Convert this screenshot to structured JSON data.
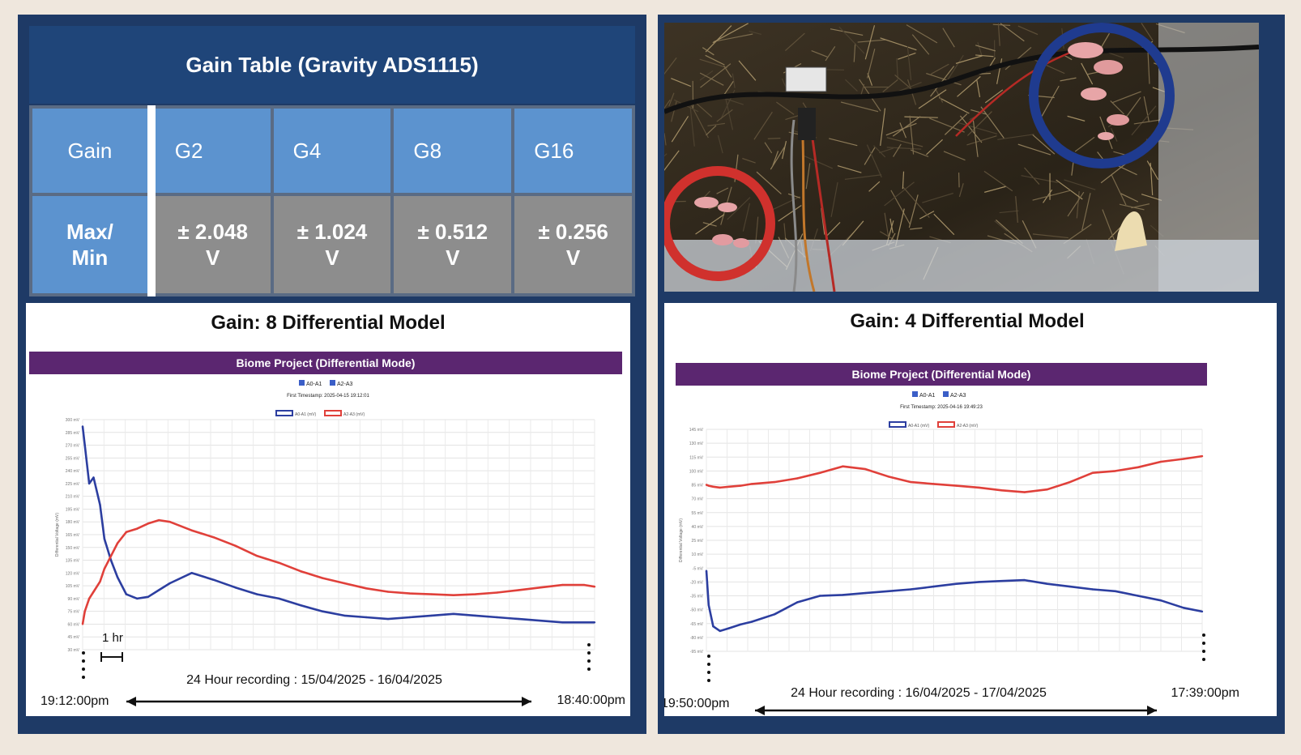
{
  "gain_table": {
    "title": "Gain Table (Gravity ADS1115)",
    "row_gain_label": "Gain",
    "row_max_label_line1": "Max/",
    "row_max_label_line2": "Min",
    "columns": [
      {
        "gain": "G2",
        "max_line1": "± 2.048",
        "max_line2": "V"
      },
      {
        "gain": "G4",
        "max_line1": "± 1.024",
        "max_line2": "V"
      },
      {
        "gain": "G8",
        "max_line1": "± 0.512",
        "max_line2": "V"
      },
      {
        "gain": "G16",
        "max_line1": "± 0.256",
        "max_line2": "V"
      }
    ]
  },
  "photo": {
    "marker_colors": {
      "red_circle": "#d0312d",
      "blue_circle": "#1f3b8f"
    }
  },
  "colors": {
    "series_a": "#2c3ea0",
    "series_b": "#e0403a",
    "banner": "#5b2670",
    "panel": "#1e3a66"
  },
  "chart_data": [
    {
      "type": "line",
      "panel_title": "Gain: 8 Differential Model",
      "banner": "Biome Project (Differential Mode)",
      "checkbox_label_1": "A0-A1",
      "checkbox_label_2": "A2-A3",
      "first_timestamp": "First Timestamp: 2025-04-15 19:12:01",
      "ylabel": "Differential Voltage (mV)",
      "ylim": [
        30,
        300
      ],
      "yticks": [
        "300 mV",
        "285 mV",
        "270 mV",
        "255 mV",
        "240 mV",
        "225 mV",
        "210 mV",
        "195 mV",
        "180 mV",
        "165 mV",
        "150 mV",
        "135 mV",
        "120 mV",
        "105 mV",
        "90 mV",
        "75 mV",
        "60 mV",
        "45 mV",
        "30 mV"
      ],
      "x_hours": [
        0,
        0.1,
        0.3,
        0.5,
        0.8,
        1,
        1.3,
        1.6,
        2,
        2.5,
        3,
        3.5,
        4,
        5,
        6,
        7,
        8,
        9,
        10,
        11,
        12,
        13,
        14,
        15,
        16,
        17,
        18,
        19,
        20,
        21,
        22,
        23,
        23.47
      ],
      "series": [
        {
          "name": "A0-A1 (mV)",
          "values": [
            292,
            270,
            225,
            232,
            200,
            160,
            135,
            115,
            95,
            90,
            92,
            100,
            108,
            120,
            112,
            103,
            95,
            90,
            82,
            75,
            70,
            68,
            66,
            68,
            70,
            72,
            70,
            68,
            66,
            64,
            62,
            62,
            62
          ]
        },
        {
          "name": "A2-A3 (mV)",
          "values": [
            60,
            75,
            90,
            98,
            110,
            125,
            140,
            155,
            168,
            172,
            178,
            182,
            180,
            170,
            162,
            152,
            140,
            132,
            122,
            114,
            108,
            102,
            98,
            96,
            95,
            94,
            95,
            97,
            100,
            103,
            106,
            106,
            104
          ]
        }
      ],
      "annotation_interval": "1 hr",
      "recording_label": "24 Hour recording : 15/04/2025 - 16/04/2025",
      "start_time": "19:12:00pm",
      "end_time": "18:40:00pm"
    },
    {
      "type": "line",
      "panel_title": "Gain: 4 Differential Model",
      "banner": "Biome Project (Differential Mode)",
      "checkbox_label_1": "A0-A1",
      "checkbox_label_2": "A2-A3",
      "first_timestamp": "First Timestamp: 2025-04-16 19:49:23",
      "ylabel": "Differential Voltage (mV)",
      "ylim": [
        -95,
        145
      ],
      "yticks": [
        "145 mV",
        "130 mV",
        "115 mV",
        "100 mV",
        "85 mV",
        "70 mV",
        "55 mV",
        "40 mV",
        "25 mV",
        "10 mV",
        "-5 mV",
        "-20 mV",
        "-35 mV",
        "-50 mV",
        "-65 mV",
        "-80 mV",
        "-95 mV"
      ],
      "x_hours": [
        0,
        0.1,
        0.3,
        0.6,
        1,
        1.5,
        2,
        3,
        4,
        5,
        6,
        7,
        8,
        9,
        10,
        11,
        12,
        13,
        14,
        15,
        16,
        17,
        18,
        19,
        20,
        21,
        21.82
      ],
      "series": [
        {
          "name": "A0-A1 (mV)",
          "values": [
            -8,
            -45,
            -68,
            -73,
            -70,
            -66,
            -63,
            -55,
            -42,
            -35,
            -34,
            -32,
            -30,
            -28,
            -25,
            -22,
            -20,
            -19,
            -18,
            -22,
            -25,
            -28,
            -30,
            -35,
            -40,
            -48,
            -52
          ]
        },
        {
          "name": "A2-A3 (mV)",
          "values": [
            85,
            84,
            83,
            82,
            83,
            84,
            86,
            88,
            92,
            98,
            105,
            102,
            94,
            88,
            86,
            84,
            82,
            79,
            77,
            80,
            88,
            98,
            100,
            104,
            110,
            113,
            116
          ]
        }
      ],
      "recording_label": "24 Hour recording : 16/04/2025 - 17/04/2025",
      "start_time": "19:50:00pm",
      "end_time": "17:39:00pm"
    }
  ]
}
